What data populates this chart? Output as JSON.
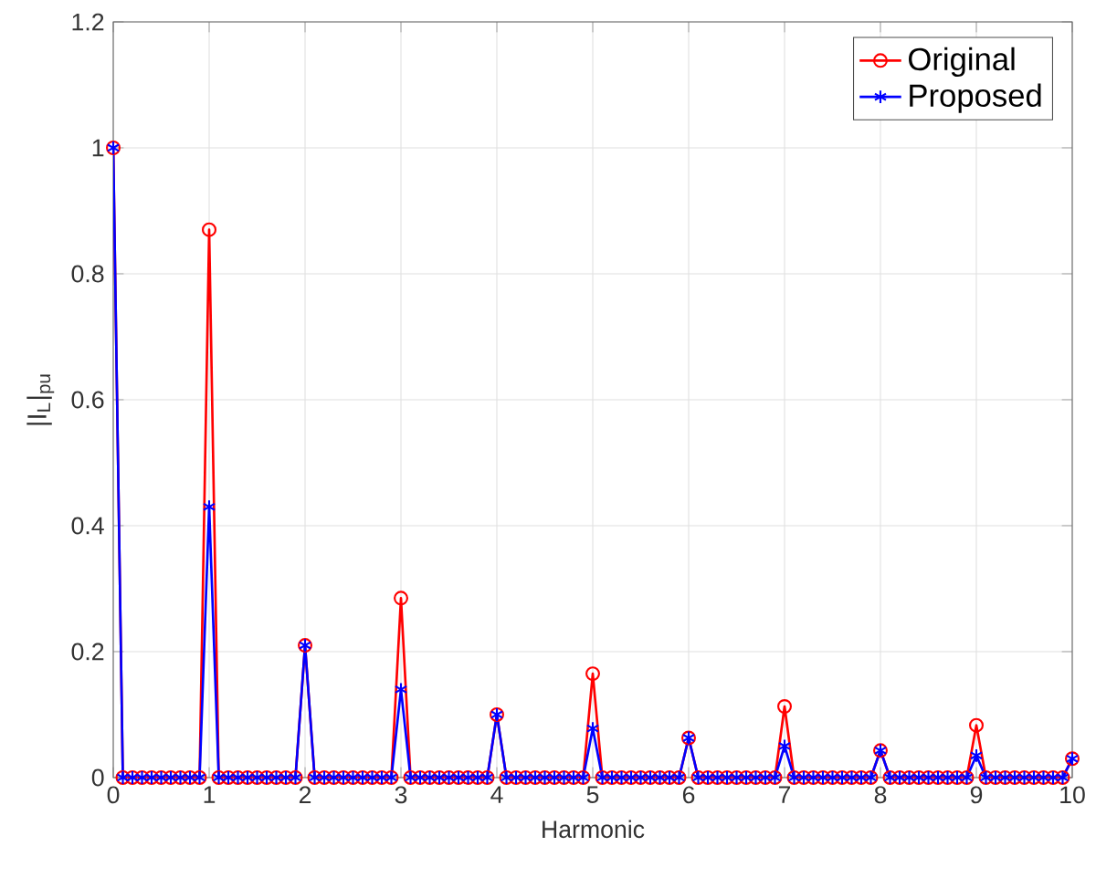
{
  "chart_data": {
    "type": "line",
    "xlabel": "Harmonic",
    "ylabel": "|I$_{L}$|$_{pu}$",
    "x": [
      0,
      0.1,
      0.2,
      0.3,
      0.4,
      0.5,
      0.6,
      0.7,
      0.8,
      0.9,
      1,
      1.1,
      1.2,
      1.3,
      1.4,
      1.5,
      1.6,
      1.7,
      1.8,
      1.9,
      2,
      2.1,
      2.2,
      2.3,
      2.4,
      2.5,
      2.6,
      2.7,
      2.8,
      2.9,
      3,
      3.1,
      3.2,
      3.3,
      3.4,
      3.5,
      3.6,
      3.7,
      3.8,
      3.9,
      4,
      4.1,
      4.2,
      4.3,
      4.4,
      4.5,
      4.6,
      4.7,
      4.8,
      4.9,
      5,
      5.1,
      5.2,
      5.3,
      5.4,
      5.5,
      5.6,
      5.7,
      5.8,
      5.9,
      6,
      6.1,
      6.2,
      6.3,
      6.4,
      6.5,
      6.6,
      6.7,
      6.8,
      6.9,
      7,
      7.1,
      7.2,
      7.3,
      7.4,
      7.5,
      7.6,
      7.7,
      7.8,
      7.9,
      8,
      8.1,
      8.2,
      8.3,
      8.4,
      8.5,
      8.6,
      8.7,
      8.8,
      8.9,
      9,
      9.1,
      9.2,
      9.3,
      9.4,
      9.5,
      9.6,
      9.7,
      9.8,
      9.9,
      10
    ],
    "series": [
      {
        "name": "Original",
        "color": "#ff0000",
        "marker": "circle",
        "values": [
          1,
          0,
          0,
          0,
          0,
          0,
          0,
          0,
          0,
          0,
          0.87,
          0,
          0,
          0,
          0,
          0,
          0,
          0,
          0,
          0,
          0.21,
          0,
          0,
          0,
          0,
          0,
          0,
          0,
          0,
          0,
          0.285,
          0,
          0,
          0,
          0,
          0,
          0,
          0,
          0,
          0,
          0.1,
          0,
          0,
          0,
          0,
          0,
          0,
          0,
          0,
          0,
          0.165,
          0,
          0,
          0,
          0,
          0,
          0,
          0,
          0,
          0,
          0.063,
          0,
          0,
          0,
          0,
          0,
          0,
          0,
          0,
          0,
          0.113,
          0,
          0,
          0,
          0,
          0,
          0,
          0,
          0,
          0,
          0.043,
          0,
          0,
          0,
          0,
          0,
          0,
          0,
          0,
          0,
          0.083,
          0,
          0,
          0,
          0,
          0,
          0,
          0,
          0,
          0,
          0.03
        ]
      },
      {
        "name": "Proposed",
        "color": "#0000ff",
        "marker": "cross",
        "values": [
          1,
          0,
          0,
          0,
          0,
          0,
          0,
          0,
          0,
          0,
          0.43,
          0,
          0,
          0,
          0,
          0,
          0,
          0,
          0,
          0,
          0.21,
          0,
          0,
          0,
          0,
          0,
          0,
          0,
          0,
          0,
          0.14,
          0,
          0,
          0,
          0,
          0,
          0,
          0,
          0,
          0,
          0.1,
          0,
          0,
          0,
          0,
          0,
          0,
          0,
          0,
          0,
          0.078,
          0,
          0,
          0,
          0,
          0,
          0,
          0,
          0,
          0,
          0.063,
          0,
          0,
          0,
          0,
          0,
          0,
          0,
          0,
          0,
          0.05,
          0,
          0,
          0,
          0,
          0,
          0,
          0,
          0,
          0,
          0.043,
          0,
          0,
          0,
          0,
          0,
          0,
          0,
          0,
          0,
          0.035,
          0,
          0,
          0,
          0,
          0,
          0,
          0,
          0,
          0,
          0.03
        ]
      }
    ],
    "xlim": [
      0,
      10
    ],
    "ylim": [
      0,
      1.2
    ],
    "xticks": [
      0,
      1,
      2,
      3,
      4,
      5,
      6,
      7,
      8,
      9,
      10
    ],
    "yticks": [
      0,
      0.2,
      0.4,
      0.6,
      0.8,
      1,
      1.2
    ],
    "grid": true,
    "legend": "top right",
    "line_style": "solid"
  }
}
